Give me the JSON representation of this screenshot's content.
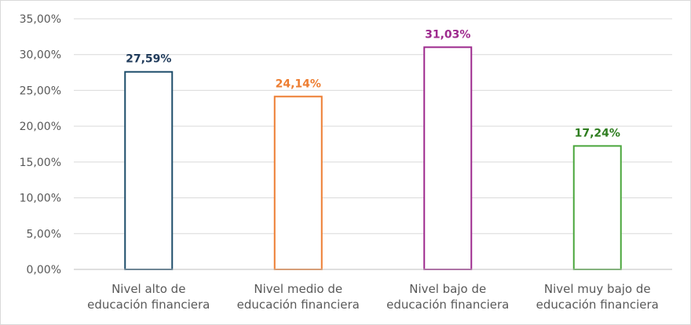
{
  "chart_data": {
    "type": "bar",
    "categories": [
      [
        "Nivel alto de",
        "educación financiera"
      ],
      [
        "Nivel medio de",
        "educación financiera"
      ],
      [
        "Nivel bajo de",
        "educación financiera"
      ],
      [
        "Nivel muy bajo de",
        "educación financiera"
      ]
    ],
    "values": [
      27.59,
      24.14,
      31.03,
      17.24
    ],
    "data_labels": [
      "27,59%",
      "24,14%",
      "31,03%",
      "17,24%"
    ],
    "bar_colors": [
      "#1f4e6b",
      "#ed7d31",
      "#9e2a8e",
      "#4aa63c"
    ],
    "label_colors": [
      "#1f3a5a",
      "#ed7d31",
      "#9e2a8e",
      "#2e7d1f"
    ],
    "ylim": [
      0,
      35
    ],
    "ytick_values": [
      0,
      5,
      10,
      15,
      20,
      25,
      30,
      35
    ],
    "ytick_labels": [
      "0,00%",
      "5,00%",
      "10,00%",
      "15,00%",
      "20,00%",
      "25,00%",
      "30,00%",
      "35,00%"
    ],
    "grid": true,
    "bar_style": "outlined",
    "legend": "none"
  }
}
